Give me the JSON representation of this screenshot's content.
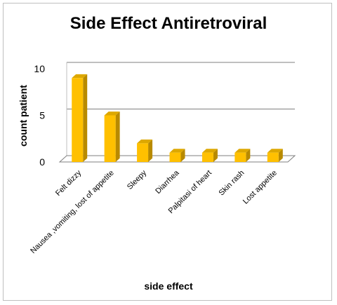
{
  "chart_data": {
    "type": "bar",
    "title": "Side Effect Antiretroviral",
    "xlabel": "side effect",
    "ylabel": "count patient",
    "categories": [
      "Felt dizzy",
      "Nausea ,vomiting, lost of appetite",
      "Sleepy",
      "Diarrhea",
      "Palpitasi of heart",
      "Skin rash",
      "Lost appetite"
    ],
    "values": [
      9,
      5,
      2,
      1,
      1,
      1,
      1
    ],
    "ylim": [
      0,
      10
    ],
    "yticks": [
      0,
      5,
      10
    ],
    "grid": true,
    "legend": "none",
    "bar_color": "#FFC000",
    "bar_side_color": "#B88A00",
    "bar_top_color": "#DDA800"
  }
}
